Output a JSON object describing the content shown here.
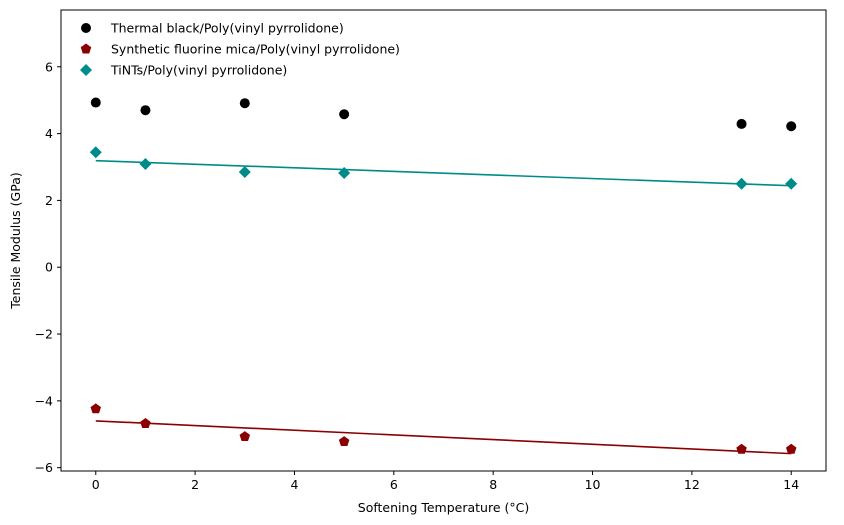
{
  "chart_data": {
    "type": "scatter",
    "title": "",
    "xlabel": "Softening Temperature (°C)",
    "ylabel": "Tensile Modulus (GPa)",
    "xlim": [
      -0.7,
      14.7
    ],
    "ylim": [
      -6.1,
      7.7
    ],
    "xticks": [
      0,
      2,
      4,
      6,
      8,
      10,
      12,
      14
    ],
    "yticks": [
      -6,
      -4,
      -2,
      0,
      2,
      4,
      6
    ],
    "xtick_labels": [
      "0",
      "2",
      "4",
      "6",
      "8",
      "10",
      "12",
      "14"
    ],
    "ytick_labels": [
      "−6",
      "−4",
      "−2",
      "0",
      "2",
      "4",
      "6"
    ],
    "grid": false,
    "legend_position": "top-left",
    "series": [
      {
        "name": "Thermal black/Poly(vinyl pyrrolidone)",
        "marker": "circle",
        "color": "#000000",
        "x": [
          0,
          1,
          3,
          5,
          13,
          14
        ],
        "y": [
          4.93,
          4.7,
          4.91,
          4.58,
          4.29,
          4.22
        ],
        "fit_line": null
      },
      {
        "name": "Synthetic fluorine mica/Poly(vinyl pyrrolidone)",
        "marker": "pentagon",
        "color": "#8b0000",
        "x": [
          0,
          1,
          3,
          5,
          13,
          14
        ],
        "y": [
          -4.24,
          -4.68,
          -5.07,
          -5.22,
          -5.45,
          -5.45
        ],
        "fit_line": {
          "x": [
            0,
            14
          ],
          "y": [
            -4.6,
            -5.58
          ]
        }
      },
      {
        "name": "TiNTs/Poly(vinyl pyrrolidone)",
        "marker": "diamond",
        "color": "#008b8b",
        "x": [
          0,
          1,
          3,
          5,
          13,
          14
        ],
        "y": [
          3.44,
          3.09,
          2.85,
          2.82,
          2.5,
          2.5
        ],
        "fit_line": {
          "x": [
            0,
            14
          ],
          "y": [
            3.19,
            2.44
          ]
        }
      }
    ]
  }
}
